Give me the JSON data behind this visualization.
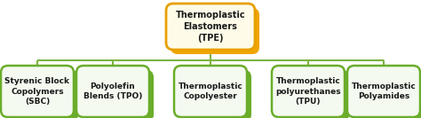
{
  "root_text": "Thermoplastic\nElastomers\n(TPE)",
  "children": [
    "Styrenic Block\nCopolymers\n(SBC)",
    "Polyolefin\nBlends (TPO)",
    "Thermoplastic\nCopolyester",
    "Thermoplastic\npolyurethanes\n(TPU)",
    "Thermoplastic\nPolyamides"
  ],
  "root_box_facecolor": "#FEFCE8",
  "root_box_edgecolor": "#E8A000",
  "root_shadow_facecolor": "#F0A500",
  "child_box_facecolor": "#F4FAF0",
  "child_box_edgecolor": "#6AAD2A",
  "child_shadow_facecolor": "#6AAD2A",
  "line_color": "#7CB342",
  "text_color": "#1A1A1A",
  "bg_color": "#FFFFFF",
  "root_fontsize": 7.0,
  "child_fontsize": 6.5
}
